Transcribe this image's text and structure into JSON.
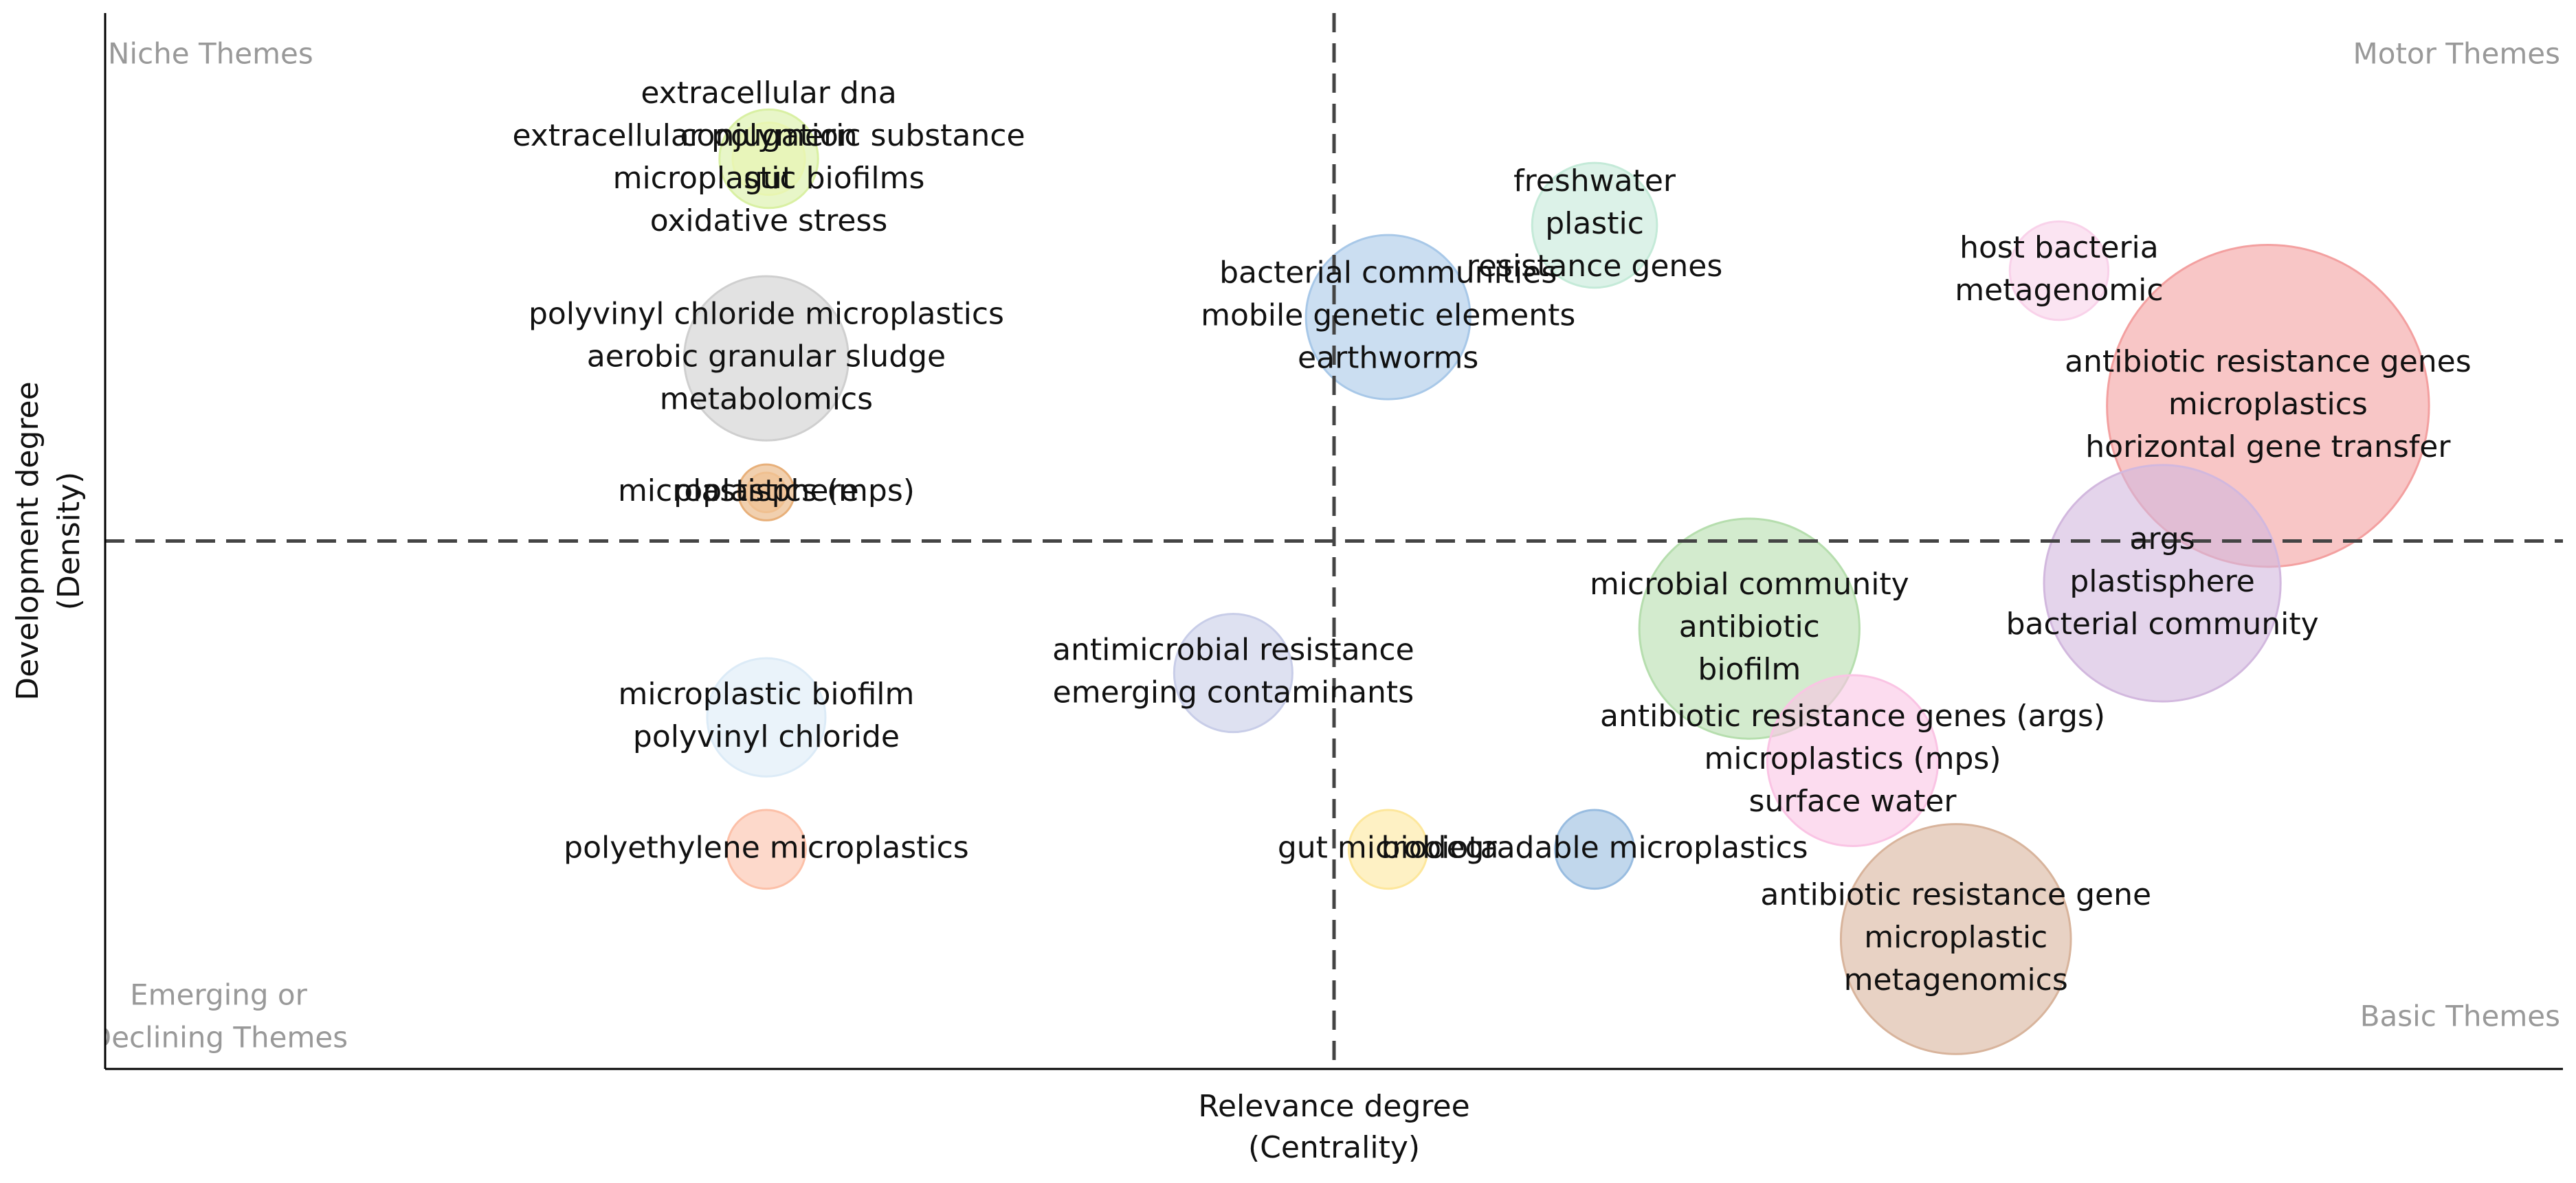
{
  "chart_data": {
    "type": "bubble",
    "x_label": [
      "Relevance degree",
      "(Centrality)"
    ],
    "y_label": [
      "Development degree",
      "(Density)"
    ],
    "quadrant_labels": {
      "top_left": [
        "Niche Themes"
      ],
      "top_right": [
        "Motor Themes"
      ],
      "bottom_left": [
        "Emerging or",
        "Declining Themes"
      ],
      "bottom_right": [
        "Basic Themes"
      ]
    },
    "xlim": [
      0,
      100
    ],
    "ylim": [
      0,
      100
    ],
    "xline": 50,
    "yline": 50,
    "points": [
      {
        "labels": [
          "extracellular dna",
          "extracellular polymeric substance",
          "microplastic biofilms",
          "oxidative stress"
        ],
        "x": 27.0,
        "y": 86.2,
        "size": 30,
        "color": "#d9f0a3"
      },
      {
        "labels": [
          "conjugation",
          "gut"
        ],
        "x": 27.0,
        "y": 86.2,
        "size": 22,
        "color": "#e8f5b0"
      },
      {
        "labels": [
          "polyvinyl chloride microplastics",
          "aerobic granular sludge",
          "metabolomics"
        ],
        "x": 26.9,
        "y": 67.3,
        "size": 50,
        "color": "#cfcfcf"
      },
      {
        "labels": [
          "microplastics (mps)"
        ],
        "x": 26.9,
        "y": 54.6,
        "size": 17,
        "color": "#e8b07a"
      },
      {
        "labels": [
          "plastisphere"
        ],
        "x": 26.9,
        "y": 54.6,
        "size": 12,
        "color": "#f0c090"
      },
      {
        "labels": [
          "microplastic biofilm",
          "polyvinyl chloride"
        ],
        "x": 26.9,
        "y": 33.3,
        "size": 36,
        "color": "#dcebf7"
      },
      {
        "labels": [
          "polyethylene microplastics"
        ],
        "x": 26.9,
        "y": 20.8,
        "size": 24,
        "color": "#fcc0a8"
      },
      {
        "labels": [
          "antimicrobial resistance",
          "emerging contaminants"
        ],
        "x": 45.9,
        "y": 37.5,
        "size": 36,
        "color": "#c8cde8"
      },
      {
        "labels": [
          "bacterial communities",
          "mobile genetic elements",
          "earthworms"
        ],
        "x": 52.2,
        "y": 71.2,
        "size": 50,
        "color": "#a8c8e8"
      },
      {
        "labels": [
          "freshwater",
          "plastic",
          "resistance genes"
        ],
        "x": 60.6,
        "y": 79.9,
        "size": 38,
        "color": "#c4ead8"
      },
      {
        "labels": [
          "host bacteria",
          "metagenomic"
        ],
        "x": 79.5,
        "y": 75.6,
        "size": 30,
        "color": "#f9d2ea"
      },
      {
        "labels": [
          "antibiotic resistance genes",
          "microplastics",
          "horizontal gene transfer"
        ],
        "x": 88.0,
        "y": 62.8,
        "size": 98,
        "color": "#f3a0a0"
      },
      {
        "labels": [
          "args",
          "plastisphere",
          "bacterial community"
        ],
        "x": 83.7,
        "y": 46.0,
        "size": 72,
        "color": "#d2b8de"
      },
      {
        "labels": [
          "microbial community",
          "antibiotic",
          "biofilm"
        ],
        "x": 66.9,
        "y": 41.7,
        "size": 67,
        "color": "#b6deae"
      },
      {
        "labels": [
          "antibiotic resistance genes (args)",
          "microplastics (mps)",
          "surface water"
        ],
        "x": 71.1,
        "y": 29.2,
        "size": 52,
        "color": "#fac4e4"
      },
      {
        "labels": [
          "gut microbiota"
        ],
        "x": 52.2,
        "y": 20.8,
        "size": 24,
        "color": "#fde79c"
      },
      {
        "labels": [
          "biodegradable microplastics"
        ],
        "x": 60.6,
        "y": 20.8,
        "size": 24,
        "color": "#98bce0"
      },
      {
        "labels": [
          "antibiotic resistance gene",
          "microplastic",
          "metagenomics"
        ],
        "x": 75.3,
        "y": 12.3,
        "size": 70,
        "color": "#d8b49c"
      }
    ]
  }
}
